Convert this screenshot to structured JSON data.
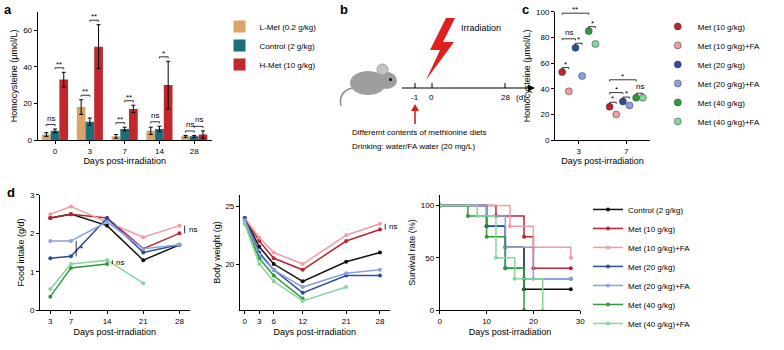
{
  "chart_data": [
    {
      "panel": "a",
      "type": "bar",
      "x_label": "Days post-irradiation",
      "y_label": "Homocysteine (μmol/L)",
      "categories": [
        "0",
        "3",
        "7",
        "14",
        "28"
      ],
      "series": [
        {
          "name": "L-Met (0.2 g/kg)",
          "color": "#d8a468",
          "values": [
            3,
            18,
            2,
            5,
            2
          ],
          "errors": [
            1,
            4,
            1,
            2,
            0.5
          ]
        },
        {
          "name": "Control (2 g/kg)",
          "color": "#1b6f7c",
          "values": [
            5,
            10,
            6,
            6,
            2
          ],
          "errors": [
            1,
            2,
            1,
            1.5,
            0.5
          ]
        },
        {
          "name": "H-Met (10 g/kg)",
          "color": "#c1272d",
          "values": [
            33,
            51,
            17,
            30,
            3
          ],
          "errors": [
            4,
            12,
            2,
            13,
            2
          ]
        }
      ],
      "ylim": [
        0,
        70
      ],
      "yticks": [
        0,
        20,
        40,
        60
      ],
      "grid": false,
      "legend": "right",
      "significance": [
        {
          "category": "0",
          "between": [
            "L-Met (0.2 g/kg)",
            "Control (2 g/kg)"
          ],
          "text": "ns"
        },
        {
          "category": "0",
          "between": [
            "Control (2 g/kg)",
            "H-Met (10 g/kg)"
          ],
          "text": "**"
        },
        {
          "category": "3",
          "between": [
            "L-Met (0.2 g/kg)",
            "Control (2 g/kg)"
          ],
          "text": "**"
        },
        {
          "category": "3",
          "between": [
            "Control (2 g/kg)",
            "H-Met (10 g/kg)"
          ],
          "text": "**"
        },
        {
          "category": "7",
          "between": [
            "L-Met (0.2 g/kg)",
            "Control (2 g/kg)"
          ],
          "text": "**"
        },
        {
          "category": "7",
          "between": [
            "Control (2 g/kg)",
            "H-Met (10 g/kg)"
          ],
          "text": "**"
        },
        {
          "category": "14",
          "between": [
            "L-Met (0.2 g/kg)",
            "Control (2 g/kg)"
          ],
          "text": "ns"
        },
        {
          "category": "14",
          "between": [
            "Control (2 g/kg)",
            "H-Met (10 g/kg)"
          ],
          "text": "*"
        },
        {
          "category": "28",
          "between": [
            "L-Met (0.2 g/kg)",
            "Control (2 g/kg)"
          ],
          "text": "ns"
        },
        {
          "category": "28",
          "between": [
            "Control (2 g/kg)",
            "H-Met (10 g/kg)"
          ],
          "text": "ns"
        }
      ]
    },
    {
      "panel": "c",
      "type": "scatter",
      "x_label": "Days post-irradiation",
      "y_label": "Homocysteine (μmol/L)",
      "categories": [
        "3",
        "7"
      ],
      "marker": "circle",
      "series": [
        {
          "name": "Met (10 g/kg)",
          "color": "#b8262f",
          "values": [
            53,
            26
          ]
        },
        {
          "name": "Met (10 g/kg)+FA",
          "color": "#f29aa5",
          "values": [
            38,
            20
          ]
        },
        {
          "name": "Met (20 g/kg)",
          "color": "#2b4c9b",
          "values": [
            72,
            30
          ]
        },
        {
          "name": "Met (20 g/kg)+FA",
          "color": "#8c9fe3",
          "values": [
            50,
            27
          ]
        },
        {
          "name": "Met (40 g/kg)",
          "color": "#2f9b3b",
          "values": [
            85,
            33
          ]
        },
        {
          "name": "Met (40 g/kg)+FA",
          "color": "#86d69c",
          "values": [
            75,
            33
          ]
        }
      ],
      "ylim": [
        0,
        100
      ],
      "yticks": [
        0,
        20,
        40,
        60,
        80,
        100
      ],
      "grid": false,
      "legend": "right",
      "significance": [
        {
          "category": "3",
          "between": [
            "Met (10 g/kg)",
            "Met (10 g/kg)+FA"
          ],
          "text": "*"
        },
        {
          "category": "3",
          "between": [
            "Met (10 g/kg)",
            "Met (20 g/kg)"
          ],
          "text": "ns"
        },
        {
          "category": "3",
          "between": [
            "Met (20 g/kg)",
            "Met (20 g/kg)+FA"
          ],
          "text": "*"
        },
        {
          "category": "3",
          "between": [
            "Met (10 g/kg)",
            "Met (40 g/kg)"
          ],
          "text": "**"
        },
        {
          "category": "3",
          "between": [
            "Met (40 g/kg)",
            "Met (40 g/kg)+FA"
          ],
          "text": "*"
        },
        {
          "category": "7",
          "between": [
            "Met (10 g/kg)",
            "Met (10 g/kg)+FA"
          ],
          "text": "*"
        },
        {
          "category": "7",
          "between": [
            "Met (10 g/kg)",
            "Met (20 g/kg)"
          ],
          "text": "*"
        },
        {
          "category": "7",
          "between": [
            "Met (20 g/kg)",
            "Met (20 g/kg)+FA"
          ],
          "text": "*"
        },
        {
          "category": "7",
          "between": [
            "Met (10 g/kg)",
            "Met (40 g/kg)"
          ],
          "text": "*"
        },
        {
          "category": "7",
          "between": [
            "Met (40 g/kg)",
            "Met (40 g/kg)+FA"
          ],
          "text": "ns"
        }
      ]
    },
    {
      "panel": "d",
      "type": "line",
      "x_label": "Days post-irradiation",
      "y_label": "Food intake (g/d)",
      "x": [
        3,
        7,
        14,
        21,
        28
      ],
      "xlim": [
        1,
        30
      ],
      "xticks": [
        3,
        7,
        14,
        21,
        28
      ],
      "ylim": [
        0,
        3
      ],
      "yticks": [
        0,
        1,
        2,
        3
      ],
      "grid": false,
      "marker": "circle",
      "series": [
        {
          "name": "Control (2 g/kg)",
          "color": "#111111",
          "values": [
            2.4,
            2.5,
            2.2,
            1.3,
            1.7
          ]
        },
        {
          "name": "Met (10 g/kg)",
          "color": "#b8262f",
          "values": [
            2.4,
            2.5,
            2.4,
            1.6,
            2.0
          ]
        },
        {
          "name": "Met (10 g/kg)+FA",
          "color": "#f29aa5",
          "values": [
            2.5,
            2.7,
            2.3,
            1.9,
            2.2
          ]
        },
        {
          "name": "Met (20 g/kg)",
          "color": "#2b4c9b",
          "values": [
            1.35,
            1.4,
            2.4,
            1.5,
            1.7
          ]
        },
        {
          "name": "Met (20 g/kg)+FA",
          "color": "#8c9fe3",
          "values": [
            1.8,
            1.8,
            2.3,
            1.6,
            1.7
          ]
        },
        {
          "name": "Met (40 g/kg)",
          "color": "#2f9b3b",
          "values": [
            0.35,
            1.1,
            1.2,
            null,
            null
          ]
        },
        {
          "name": "Met (40 g/kg)+FA",
          "color": "#86d69c",
          "values": [
            0.55,
            1.2,
            1.3,
            0.7,
            null
          ]
        }
      ],
      "significance": [
        {
          "x": 7,
          "between": [
            "Met (20 g/kg)",
            "Met (20 g/kg)+FA"
          ],
          "text": "*"
        },
        {
          "x": 14,
          "between": [
            "Met (40 g/kg)",
            "Met (40 g/kg)+FA"
          ],
          "text": "ns"
        },
        {
          "x": 28,
          "between": [
            "Met (10 g/kg)",
            "Met (10 g/kg)+FA"
          ],
          "text": "ns"
        }
      ]
    },
    {
      "type": "line",
      "x_label": "Days post-irradiation",
      "y_label": "Body weight (g)",
      "x": [
        0,
        3,
        6,
        12,
        21,
        28
      ],
      "xlim": [
        -1,
        30
      ],
      "xticks": [
        0,
        3,
        6,
        12,
        21,
        28
      ],
      "ylim": [
        16,
        26
      ],
      "yticks": [
        20,
        25
      ],
      "grid": false,
      "marker": "circle",
      "series": [
        {
          "name": "Control (2 g/kg)",
          "color": "#111111",
          "values": [
            24,
            21.5,
            20,
            18.5,
            20.2,
            21
          ]
        },
        {
          "name": "Met (10 g/kg)",
          "color": "#b8262f",
          "values": [
            24,
            22,
            20.5,
            19.5,
            22,
            23
          ]
        },
        {
          "name": "Met (10 g/kg)+FA",
          "color": "#f29aa5",
          "values": [
            24,
            22.3,
            21,
            20,
            22.5,
            23.5
          ]
        },
        {
          "name": "Met (20 g/kg)",
          "color": "#2b4c9b",
          "values": [
            24,
            21,
            19.5,
            17.5,
            19,
            19
          ]
        },
        {
          "name": "Met (20 g/kg)+FA",
          "color": "#8c9fe3",
          "values": [
            23.8,
            20.8,
            19.5,
            18,
            19.2,
            19.5
          ]
        },
        {
          "name": "Met (40 g/kg)",
          "color": "#2f9b3b",
          "values": [
            23.5,
            20.5,
            19,
            17,
            null,
            null
          ]
        },
        {
          "name": "Met (40 g/kg)+FA",
          "color": "#86d69c",
          "values": [
            23.5,
            20,
            18.5,
            16.8,
            18,
            null
          ]
        }
      ],
      "significance": [
        {
          "x": 28,
          "between": [
            "Met (10 g/kg)",
            "Met (10 g/kg)+FA"
          ],
          "text": "ns"
        }
      ]
    },
    {
      "type": "line",
      "line_style": "step",
      "x_label": "Days post-irradiation",
      "y_label": "Survival rate (%)",
      "xlim": [
        0,
        30
      ],
      "xticks": [
        0,
        10,
        20,
        30
      ],
      "ylim": [
        0,
        110
      ],
      "yticks": [
        0,
        50,
        100
      ],
      "grid": false,
      "legend": "right",
      "marker": "circle",
      "series": [
        {
          "name": "Control (2 g/kg)",
          "color": "#111111",
          "x": [
            0,
            10,
            14,
            18,
            28
          ],
          "values": [
            100,
            80,
            60,
            20,
            20
          ]
        },
        {
          "name": "Met (10 g/kg)",
          "color": "#b8262f",
          "x": [
            0,
            12,
            18,
            20,
            28
          ],
          "values": [
            100,
            90,
            70,
            40,
            40
          ]
        },
        {
          "name": "Met (10 g/kg)+FA",
          "color": "#f29aa5",
          "x": [
            0,
            15,
            20,
            28
          ],
          "values": [
            100,
            80,
            60,
            50
          ]
        },
        {
          "name": "Met (20 g/kg)",
          "color": "#2b4c9b",
          "x": [
            0,
            10,
            14,
            18,
            28
          ],
          "values": [
            100,
            80,
            40,
            30,
            30
          ]
        },
        {
          "name": "Met (20 g/kg)+FA",
          "color": "#8c9fe3",
          "x": [
            0,
            10,
            14,
            20,
            28
          ],
          "values": [
            100,
            90,
            60,
            30,
            30
          ]
        },
        {
          "name": "Met (40 g/kg)",
          "color": "#2f9b3b",
          "x": [
            0,
            6,
            10,
            14,
            18
          ],
          "values": [
            100,
            90,
            70,
            40,
            0
          ]
        },
        {
          "name": "Met (40 g/kg)+FA",
          "color": "#86d69c",
          "x": [
            0,
            8,
            12,
            16,
            22
          ],
          "values": [
            100,
            90,
            50,
            30,
            0
          ]
        }
      ]
    }
  ],
  "diagram": {
    "panel": "b",
    "irradiation_label": "Irradiation",
    "timeline": {
      "ticks": [
        -1,
        0,
        28
      ],
      "unit": "(d)"
    },
    "notes": [
      "Differernt contents of methionine diets",
      "Drinking: water/FA water (20 mg/L)"
    ]
  }
}
